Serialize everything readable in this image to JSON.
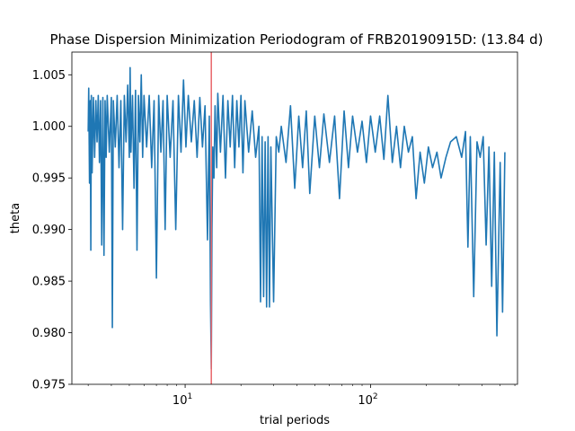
{
  "chart_data": {
    "type": "line",
    "title": "Phase Dispersion Minimization Periodogram of FRB20190915D: (13.84 d)",
    "xlabel": "trial periods",
    "ylabel": "theta",
    "xscale": "log",
    "xlim": [
      2.45,
      620
    ],
    "ylim": [
      0.975,
      1.0072
    ],
    "xticks": [
      {
        "value": 10,
        "base": "10",
        "exp": "1"
      },
      {
        "value": 100,
        "base": "10",
        "exp": "2"
      }
    ],
    "yticks": [
      {
        "value": 0.975,
        "label": "0.975"
      },
      {
        "value": 0.98,
        "label": "0.980"
      },
      {
        "value": 0.985,
        "label": "0.985"
      },
      {
        "value": 0.99,
        "label": "0.990"
      },
      {
        "value": 0.995,
        "label": "0.995"
      },
      {
        "value": 1.0,
        "label": "1.000"
      },
      {
        "value": 1.005,
        "label": "1.005"
      }
    ],
    "marker_line": {
      "x": 13.84,
      "color": "#e8666a"
    },
    "series": [
      {
        "color": "#1f77b4",
        "points": [
          [
            3.0,
            0.9995
          ],
          [
            3.02,
            1.0037
          ],
          [
            3.05,
            0.9945
          ],
          [
            3.08,
            1.0025
          ],
          [
            3.1,
            0.988
          ],
          [
            3.12,
            1.003
          ],
          [
            3.15,
            0.9955
          ],
          [
            3.2,
            1.0028
          ],
          [
            3.25,
            0.997
          ],
          [
            3.3,
            1.0025
          ],
          [
            3.35,
            0.9985
          ],
          [
            3.4,
            1.003
          ],
          [
            3.45,
            0.9965
          ],
          [
            3.5,
            1.0025
          ],
          [
            3.55,
            0.9885
          ],
          [
            3.6,
            1.0028
          ],
          [
            3.65,
            0.9875
          ],
          [
            3.7,
            1.0025
          ],
          [
            3.75,
            0.997
          ],
          [
            3.8,
            1.003
          ],
          [
            3.9,
            0.9975
          ],
          [
            4.0,
            1.0028
          ],
          [
            4.05,
            0.9805
          ],
          [
            4.1,
            1.0025
          ],
          [
            4.2,
            0.998
          ],
          [
            4.3,
            1.003
          ],
          [
            4.4,
            0.996
          ],
          [
            4.5,
            1.0025
          ],
          [
            4.6,
            0.99
          ],
          [
            4.7,
            1.003
          ],
          [
            4.8,
            0.9985
          ],
          [
            4.9,
            1.004
          ],
          [
            5.0,
            0.997
          ],
          [
            5.05,
            1.0057
          ],
          [
            5.1,
            0.9975
          ],
          [
            5.2,
            1.003
          ],
          [
            5.3,
            0.994
          ],
          [
            5.4,
            1.0035
          ],
          [
            5.5,
            0.988
          ],
          [
            5.6,
            1.003
          ],
          [
            5.7,
            0.9985
          ],
          [
            5.8,
            1.005
          ],
          [
            5.9,
            0.997
          ],
          [
            6.0,
            1.003
          ],
          [
            6.2,
            0.998
          ],
          [
            6.4,
            1.003
          ],
          [
            6.6,
            0.996
          ],
          [
            6.8,
            1.0025
          ],
          [
            7.0,
            0.9853
          ],
          [
            7.2,
            1.003
          ],
          [
            7.4,
            0.9975
          ],
          [
            7.6,
            1.0025
          ],
          [
            7.8,
            0.99
          ],
          [
            8.0,
            1.003
          ],
          [
            8.3,
            0.997
          ],
          [
            8.6,
            1.0025
          ],
          [
            8.9,
            0.99
          ],
          [
            9.2,
            1.003
          ],
          [
            9.5,
            0.9975
          ],
          [
            9.8,
            1.0045
          ],
          [
            10.1,
            0.998
          ],
          [
            10.4,
            1.003
          ],
          [
            10.8,
            0.9985
          ],
          [
            11.2,
            1.0025
          ],
          [
            11.6,
            0.997
          ],
          [
            12.0,
            1.0028
          ],
          [
            12.4,
            0.998
          ],
          [
            12.8,
            1.002
          ],
          [
            13.2,
            0.989
          ],
          [
            13.5,
            1.001
          ],
          [
            13.7,
            0.983
          ],
          [
            13.84,
            0.9765
          ],
          [
            13.95,
            0.99
          ],
          [
            14.1,
            0.998
          ],
          [
            14.3,
            0.995
          ],
          [
            14.5,
            1.002
          ],
          [
            14.8,
            0.996
          ],
          [
            15.0,
            1.0032
          ],
          [
            15.5,
            0.9975
          ],
          [
            16.0,
            1.003
          ],
          [
            16.5,
            0.995
          ],
          [
            17.0,
            1.0025
          ],
          [
            17.5,
            0.998
          ],
          [
            18.0,
            1.003
          ],
          [
            18.5,
            0.996
          ],
          [
            19.0,
            1.0025
          ],
          [
            19.5,
            0.998
          ],
          [
            20.0,
            1.003
          ],
          [
            20.5,
            0.9955
          ],
          [
            21.0,
            1.0025
          ],
          [
            22.0,
            0.9975
          ],
          [
            23.0,
            1.0015
          ],
          [
            24.0,
            0.997
          ],
          [
            25.0,
            1.0
          ],
          [
            25.5,
            0.983
          ],
          [
            26.0,
            0.999
          ],
          [
            26.5,
            0.9835
          ],
          [
            27.0,
            0.9985
          ],
          [
            27.5,
            0.9825
          ],
          [
            28.0,
            0.999
          ],
          [
            28.5,
            0.9825
          ],
          [
            29.0,
            0.998
          ],
          [
            30.0,
            0.983
          ],
          [
            31.0,
            0.999
          ],
          [
            32.0,
            0.9975
          ],
          [
            33.0,
            1.0
          ],
          [
            35.0,
            0.9965
          ],
          [
            37.0,
            1.002
          ],
          [
            39.0,
            0.994
          ],
          [
            41.0,
            1.001
          ],
          [
            43.0,
            0.996
          ],
          [
            45.0,
            1.0015
          ],
          [
            47.0,
            0.9935
          ],
          [
            50.0,
            1.001
          ],
          [
            53.0,
            0.996
          ],
          [
            56.0,
            1.0012
          ],
          [
            60.0,
            0.9965
          ],
          [
            64.0,
            1.001
          ],
          [
            68.0,
            0.993
          ],
          [
            72.0,
            1.0015
          ],
          [
            76.0,
            0.996
          ],
          [
            80.0,
            1.001
          ],
          [
            85.0,
            0.9975
          ],
          [
            90.0,
            1.0005
          ],
          [
            95.0,
            0.9965
          ],
          [
            100.0,
            1.001
          ],
          [
            106.0,
            0.9975
          ],
          [
            112.0,
            1.001
          ],
          [
            118.0,
            0.9968
          ],
          [
            124.0,
            1.003
          ],
          [
            131.0,
            0.9965
          ],
          [
            138.0,
            1.0
          ],
          [
            145.0,
            0.996
          ],
          [
            152.0,
            1.0
          ],
          [
            160.0,
            0.9975
          ],
          [
            168.0,
            0.999
          ],
          [
            176.0,
            0.993
          ],
          [
            185.0,
            0.9975
          ],
          [
            195.0,
            0.9945
          ],
          [
            205.0,
            0.998
          ],
          [
            216.0,
            0.996
          ],
          [
            228.0,
            0.9975
          ],
          [
            240.0,
            0.995
          ],
          [
            255.0,
            0.997
          ],
          [
            270.0,
            0.9985
          ],
          [
            290.0,
            0.999
          ],
          [
            310.0,
            0.997
          ],
          [
            325.0,
            0.9995
          ],
          [
            335.0,
            0.9883
          ],
          [
            345.0,
            0.999
          ],
          [
            360.0,
            0.9835
          ],
          [
            375.0,
            0.9985
          ],
          [
            390.0,
            0.997
          ],
          [
            405.0,
            0.999
          ],
          [
            420.0,
            0.9885
          ],
          [
            435.0,
            0.998
          ],
          [
            450.0,
            0.9845
          ],
          [
            465.0,
            0.9975
          ],
          [
            480.0,
            0.9797
          ],
          [
            500.0,
            0.9965
          ],
          [
            515.0,
            0.982
          ],
          [
            530.0,
            0.9975
          ]
        ]
      }
    ]
  }
}
